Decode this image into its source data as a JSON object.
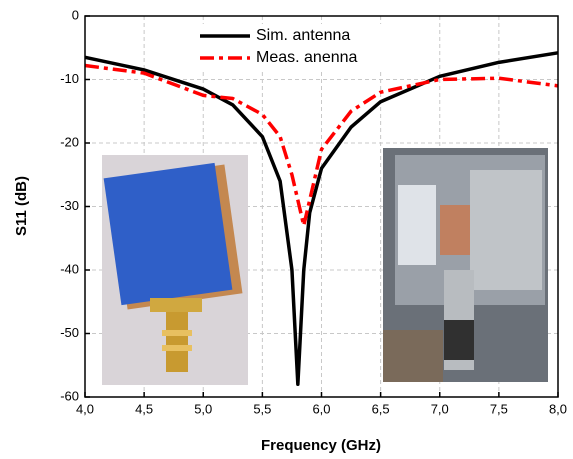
{
  "chart_data": {
    "type": "line",
    "xlabel": "Frequency (GHz)",
    "ylabel": "S11 (dB)",
    "x": [
      4.0,
      4.5,
      5.0,
      5.25,
      5.5,
      5.65,
      5.75,
      5.8,
      5.85,
      5.9,
      6.0,
      6.25,
      6.5,
      7.0,
      7.5,
      8.0
    ],
    "series": [
      {
        "name": "Sim. antenna",
        "color": "#000000",
        "dash": "solid",
        "values": [
          -6.5,
          -8.5,
          -11.5,
          -14,
          -19,
          -26,
          -40,
          -58,
          -40,
          -31,
          -24,
          -17.5,
          -13.5,
          -9.5,
          -7.3,
          -5.8
        ]
      },
      {
        "name": "Meas. anenna",
        "color": "#ff0000",
        "dash": "dashdot",
        "values": [
          -7.8,
          -9,
          -12.5,
          -13,
          -15.5,
          -19,
          -25,
          -29,
          -33,
          -29,
          -21,
          -15,
          -12,
          -10,
          -9.8,
          -11
        ]
      }
    ],
    "xlim": [
      4.0,
      8.0
    ],
    "xticks": [
      {
        "value": 4.0,
        "label": "4,0"
      },
      {
        "value": 4.5,
        "label": "4,5"
      },
      {
        "value": 5.0,
        "label": "5,0"
      },
      {
        "value": 5.5,
        "label": "5,5"
      },
      {
        "value": 6.0,
        "label": "6,0"
      },
      {
        "value": 6.5,
        "label": "6,5"
      },
      {
        "value": 7.0,
        "label": "7,0"
      },
      {
        "value": 7.5,
        "label": "7,5"
      },
      {
        "value": 8.0,
        "label": "8,0"
      }
    ],
    "ylim": [
      -60,
      0
    ],
    "yticks": [
      0,
      -10,
      -20,
      -30,
      -40,
      -50,
      -60
    ],
    "grid": true
  }
}
